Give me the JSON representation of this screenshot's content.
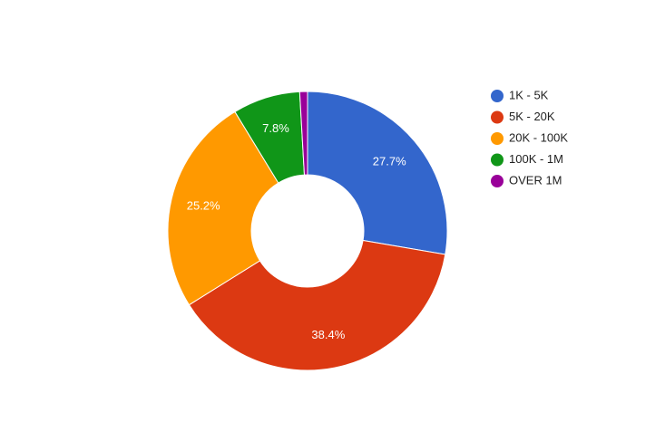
{
  "chart_data": {
    "type": "donut",
    "categories": [
      "1K - 5K",
      "5K - 20K",
      "20K - 100K",
      "100K - 1M",
      "OVER 1M"
    ],
    "values": [
      27.7,
      38.4,
      25.2,
      7.8,
      0.9
    ],
    "value_labels": [
      "27.7%",
      "38.4%",
      "25.2%",
      "7.8%",
      null
    ],
    "colors": [
      "#3366cc",
      "#dc3912",
      "#ff9900",
      "#109618",
      "#990099"
    ],
    "legend": "right"
  }
}
